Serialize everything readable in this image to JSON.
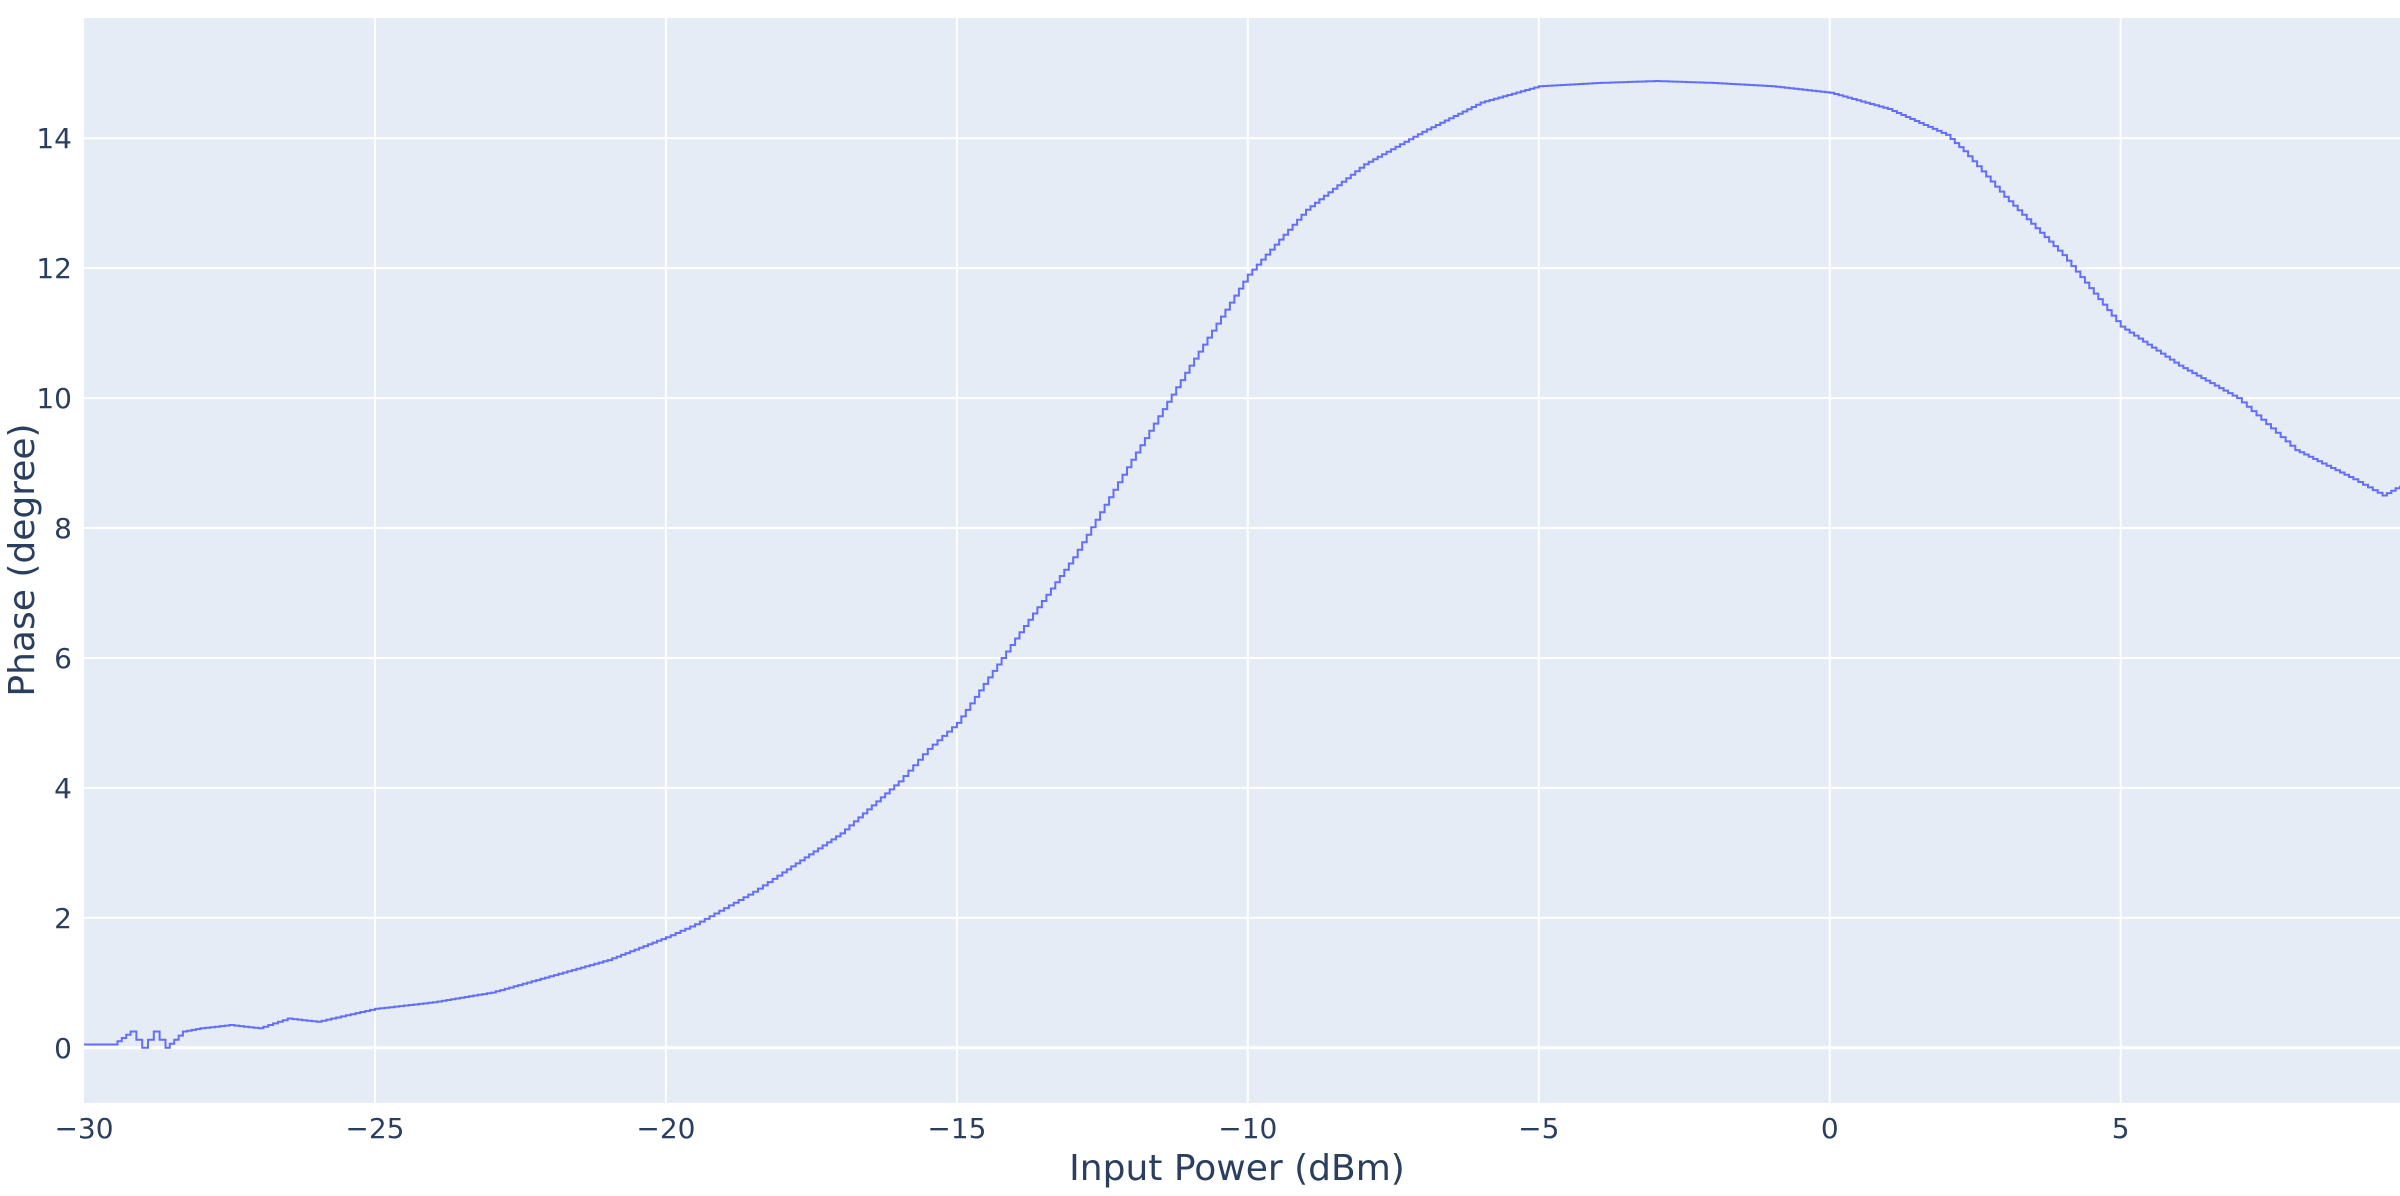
{
  "chart_data": {
    "type": "line",
    "line_shape": "step",
    "xlabel": "Input Power (dBm)",
    "ylabel": "Phase (degree)",
    "xlim": [
      -30,
      9.8
    ],
    "ylim": [
      -0.85,
      15.85
    ],
    "x_ticks": [
      -30,
      -25,
      -20,
      -15,
      -10,
      -5,
      0,
      5
    ],
    "x_tick_labels": [
      "−30",
      "−25",
      "−20",
      "−15",
      "−10",
      "−5",
      "0",
      "5"
    ],
    "y_ticks": [
      0,
      2,
      4,
      6,
      8,
      10,
      12,
      14
    ],
    "y_tick_labels": [
      "0",
      "2",
      "4",
      "6",
      "8",
      "10",
      "12",
      "14"
    ],
    "grid": true,
    "legend": false,
    "colors": {
      "plot_background": "#e5ecf6",
      "grid": "#ffffff",
      "line": "#636efa",
      "text": "#2a3f5f"
    },
    "series": [
      {
        "x": [
          -30,
          -29.5,
          -29.2,
          -29,
          -28.8,
          -28.6,
          -28.3,
          -28,
          -27.5,
          -27,
          -26.5,
          -26,
          -25.5,
          -25,
          -24.5,
          -24,
          -23,
          -22,
          -21,
          -20,
          -19.5,
          -19,
          -18.5,
          -18,
          -17,
          -16,
          -15.5,
          -15,
          -14,
          -13,
          -12,
          -11,
          -10,
          -9,
          -8,
          -7,
          -6,
          -5,
          -4,
          -3,
          -2,
          -1,
          0,
          1,
          2,
          2.3,
          3,
          4,
          5,
          6,
          7,
          7.5,
          8,
          9,
          9.5,
          9.8
        ],
        "y": [
          0.05,
          0.05,
          0.25,
          0.0,
          0.25,
          0.0,
          0.25,
          0.3,
          0.35,
          0.3,
          0.45,
          0.4,
          0.5,
          0.6,
          0.65,
          0.7,
          0.85,
          1.1,
          1.35,
          1.7,
          1.9,
          2.15,
          2.4,
          2.7,
          3.3,
          4.1,
          4.6,
          5.0,
          6.3,
          7.55,
          9.05,
          10.5,
          11.9,
          12.9,
          13.6,
          14.1,
          14.55,
          14.8,
          14.85,
          14.88,
          14.85,
          14.8,
          14.7,
          14.45,
          14.05,
          13.8,
          13.1,
          12.2,
          11.1,
          10.5,
          10.0,
          9.6,
          9.2,
          8.75,
          8.5,
          8.65
        ]
      }
    ]
  }
}
